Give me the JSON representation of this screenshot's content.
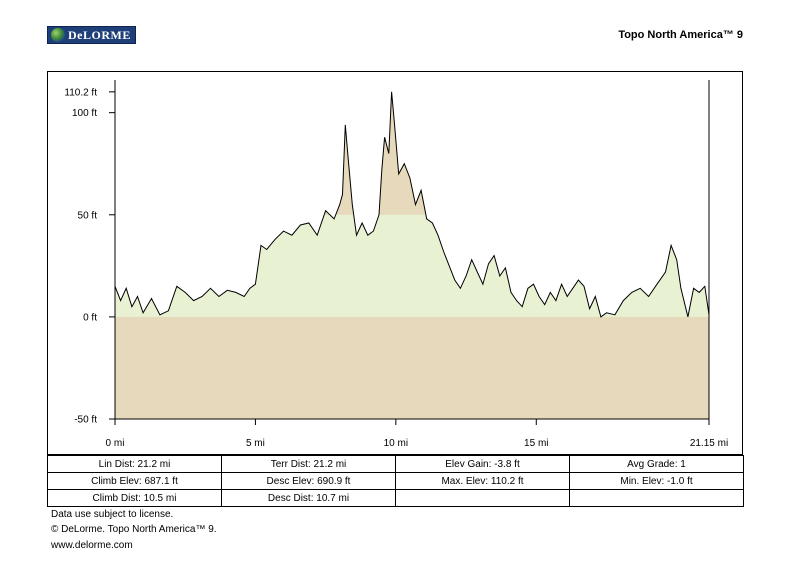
{
  "header": {
    "logo_text": "DeLORME",
    "product": "Topo North America™ 9"
  },
  "chart_data": {
    "type": "area",
    "x_unit": "mi",
    "y_unit": "ft",
    "xlim": [
      0,
      21.15
    ],
    "ylim": [
      -50,
      110.2
    ],
    "x_ticks": [
      0,
      5,
      10,
      15,
      21.15
    ],
    "x_tick_labels": [
      "0 mi",
      "5 mi",
      "10 mi",
      "15 mi",
      "21.15 mi"
    ],
    "y_ticks": [
      -50,
      0,
      50,
      100,
      110.2
    ],
    "y_tick_labels": [
      "-50 ft",
      "0 ft",
      "50 ft",
      "100 ft",
      "110.2 ft"
    ],
    "grid": false,
    "colors": {
      "terrain": "#e7d9bb",
      "above_grade": "#e8f2d3",
      "line": "#000000"
    },
    "series": [
      {
        "x": [
          0,
          0.2,
          0.4,
          0.6,
          0.8,
          1.0,
          1.3,
          1.6,
          1.9,
          2.2,
          2.5,
          2.8,
          3.1,
          3.4,
          3.7,
          4.0,
          4.3,
          4.6,
          4.8,
          5.0,
          5.2,
          5.4,
          5.7,
          6.0,
          6.3,
          6.6,
          6.9,
          7.2,
          7.5,
          7.8,
          8.0,
          8.1,
          8.2,
          8.3,
          8.45,
          8.6,
          8.8,
          9.0,
          9.2,
          9.4,
          9.5,
          9.6,
          9.75,
          9.85,
          9.95,
          10.1,
          10.3,
          10.5,
          10.7,
          10.9,
          11.1,
          11.3,
          11.5,
          11.7,
          11.9,
          12.1,
          12.3,
          12.5,
          12.7,
          12.9,
          13.1,
          13.3,
          13.5,
          13.7,
          13.9,
          14.1,
          14.3,
          14.5,
          14.7,
          14.9,
          15.1,
          15.3,
          15.5,
          15.7,
          15.9,
          16.1,
          16.3,
          16.5,
          16.7,
          16.9,
          17.1,
          17.3,
          17.5,
          17.8,
          18.1,
          18.4,
          18.7,
          19.0,
          19.3,
          19.6,
          19.8,
          20.0,
          20.15,
          20.4,
          20.6,
          20.8,
          21.0,
          21.15
        ],
        "y": [
          15,
          8,
          14,
          5,
          10,
          2,
          9,
          1,
          3,
          15,
          12,
          8,
          10,
          14,
          10,
          13,
          12,
          10,
          14,
          16,
          35,
          33,
          38,
          42,
          40,
          45,
          46,
          40,
          52,
          48,
          55,
          60,
          94,
          78,
          55,
          40,
          46,
          40,
          42,
          50,
          72,
          88,
          80,
          110.2,
          95,
          70,
          75,
          68,
          55,
          62,
          48,
          46,
          40,
          32,
          25,
          18,
          14,
          20,
          28,
          22,
          16,
          26,
          30,
          20,
          24,
          12,
          8,
          5,
          14,
          16,
          10,
          6,
          12,
          8,
          16,
          10,
          14,
          18,
          15,
          4,
          10,
          0,
          2,
          1,
          8,
          12,
          14,
          10,
          16,
          22,
          35,
          28,
          14,
          0,
          14,
          12,
          15,
          1
        ]
      }
    ]
  },
  "stats": [
    [
      "Lin Dist:  21.2 mi",
      "Terr Dist:  21.2 mi",
      "Elev Gain:  -3.8 ft",
      "Avg Grade:  1"
    ],
    [
      "Climb Elev:  687.1 ft",
      "Desc Elev:  690.9 ft",
      "Max. Elev:  110.2 ft",
      "Min. Elev:  -1.0 ft"
    ],
    [
      "Climb Dist:  10.5 mi",
      "Desc Dist:  10.7 mi",
      "",
      ""
    ]
  ],
  "footer": {
    "line1": "Data use subject to license.",
    "line2": "© DeLorme. Topo North America™ 9.",
    "line3": "www.delorme.com"
  }
}
